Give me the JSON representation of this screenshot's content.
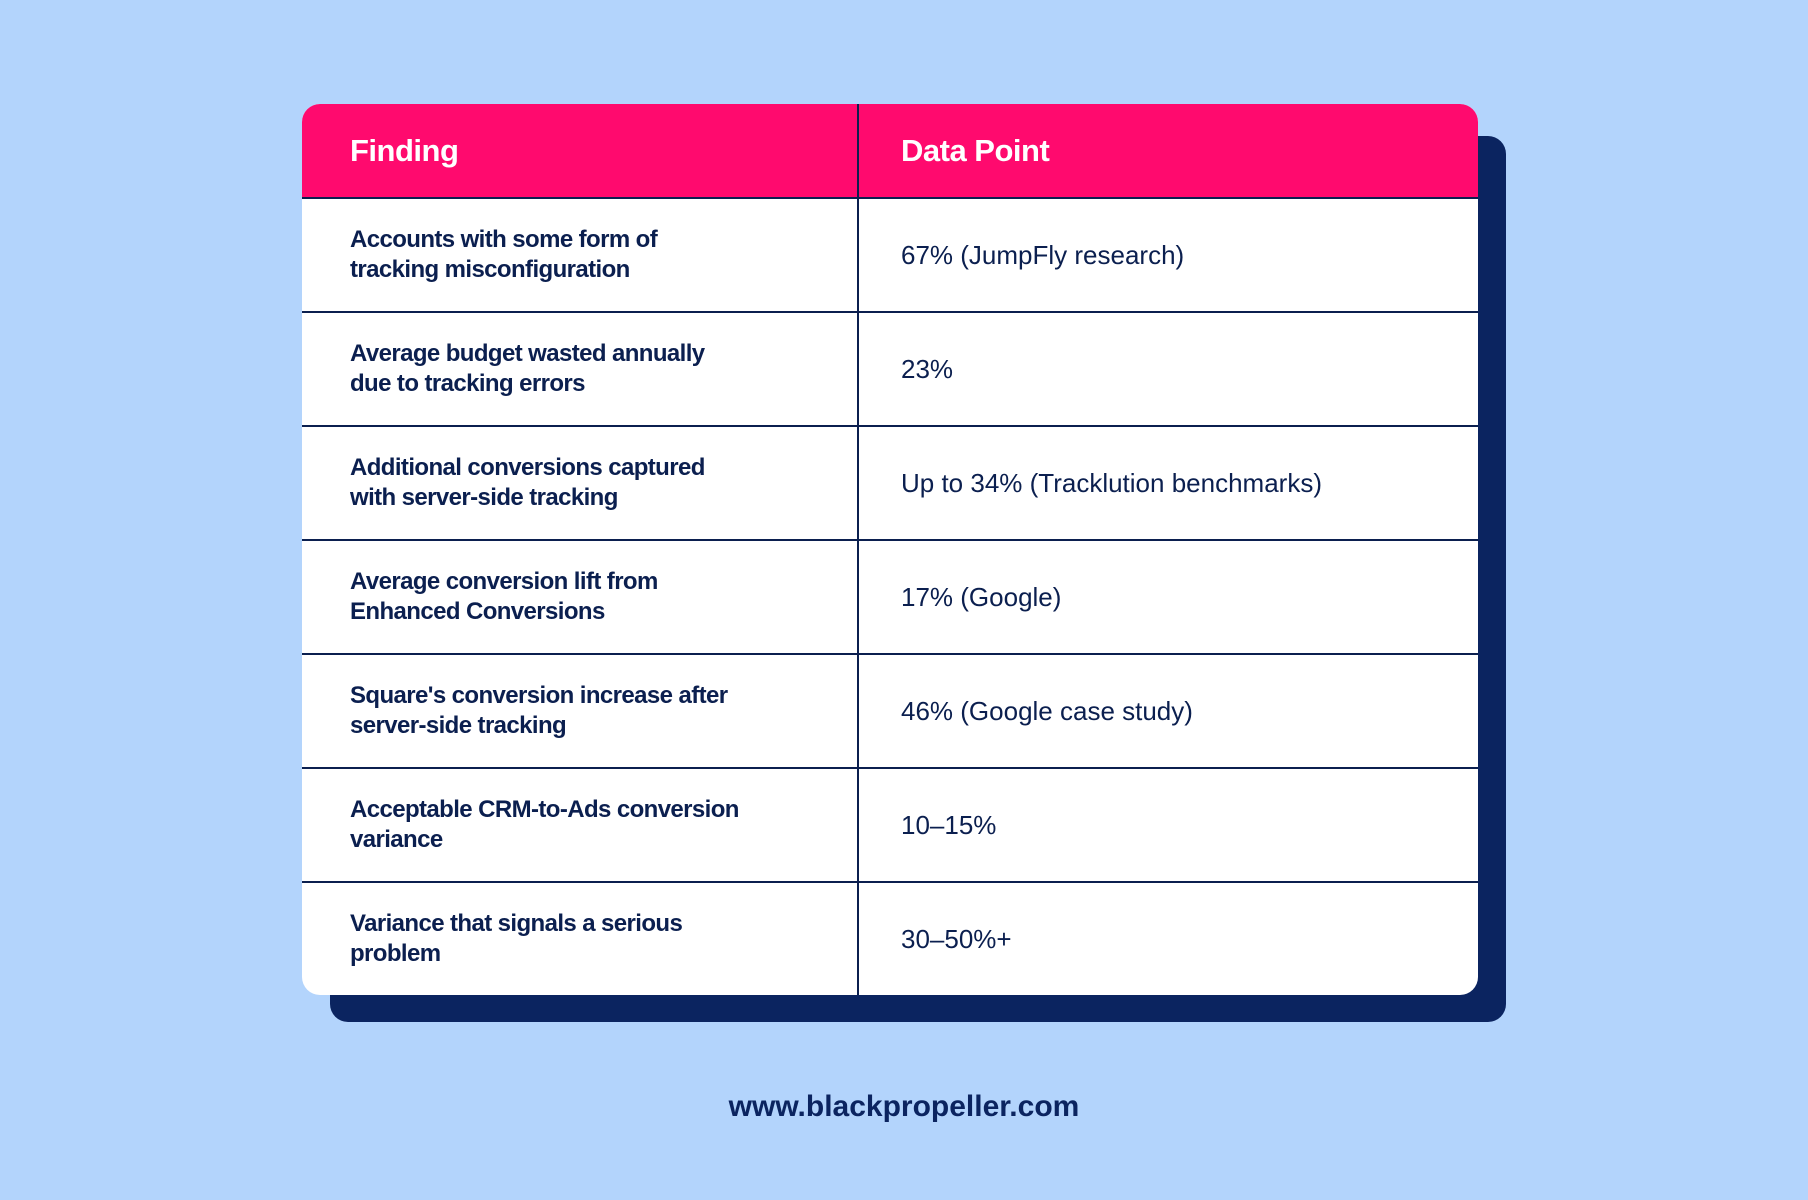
{
  "table": {
    "header": [
      "Finding",
      "Data Point"
    ],
    "rows": [
      [
        "Accounts with some form of tracking misconfiguration",
        "67% (JumpFly research)"
      ],
      [
        "Average budget wasted annually due to tracking errors",
        "23%"
      ],
      [
        "Additional conversions captured with server-side tracking",
        "Up to 34% (Tracklution benchmarks)"
      ],
      [
        "Average conversion lift from Enhanced Conversions",
        "17% (Google)"
      ],
      [
        "Square's conversion increase after server-side tracking",
        "46% (Google case study)"
      ],
      [
        "Acceptable CRM-to-Ads conversion variance",
        "10–15%"
      ],
      [
        "Variance that signals a serious problem",
        "30–50%+"
      ]
    ]
  },
  "footer": {
    "url": "www.blackpropeller.com"
  }
}
